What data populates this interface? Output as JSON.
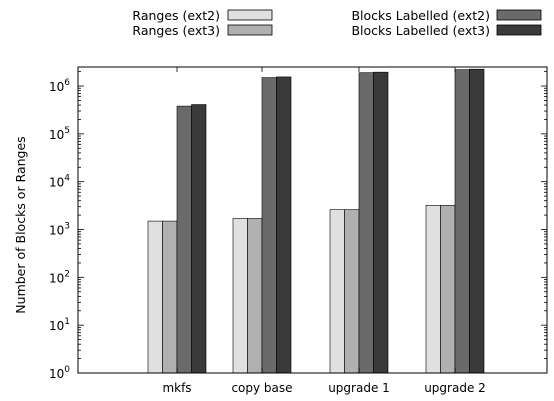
{
  "chart_data": {
    "type": "bar",
    "title": "",
    "xlabel": "",
    "ylabel": "Number of Blocks or Ranges",
    "yscale": "log",
    "ylim": [
      1,
      2500000
    ],
    "y_ticks": [
      {
        "value": 1,
        "base": "10",
        "exp": "0"
      },
      {
        "value": 10,
        "base": "10",
        "exp": "1"
      },
      {
        "value": 100,
        "base": "10",
        "exp": "2"
      },
      {
        "value": 1000,
        "base": "10",
        "exp": "3"
      },
      {
        "value": 10000,
        "base": "10",
        "exp": "4"
      },
      {
        "value": 100000,
        "base": "10",
        "exp": "5"
      },
      {
        "value": 1000000,
        "base": "10",
        "exp": "6"
      }
    ],
    "categories": [
      "mkfs",
      "copy base",
      "upgrade 1",
      "upgrade 2"
    ],
    "series": [
      {
        "name": "Ranges (ext2)",
        "color": "#e0e0e0",
        "values": [
          1500,
          1700,
          2600,
          3200
        ]
      },
      {
        "name": "Ranges (ext3)",
        "color": "#b0b0b0",
        "values": [
          1500,
          1700,
          2600,
          3200
        ]
      },
      {
        "name": "Blocks Labelled (ext2)",
        "color": "#6a6a6a",
        "values": [
          380000,
          1500000,
          1900000,
          2200000
        ]
      },
      {
        "name": "Blocks Labelled (ext3)",
        "color": "#3a3a3a",
        "values": [
          410000,
          1550000,
          1950000,
          2250000
        ]
      }
    ],
    "legend_position": "top",
    "grid": false
  }
}
